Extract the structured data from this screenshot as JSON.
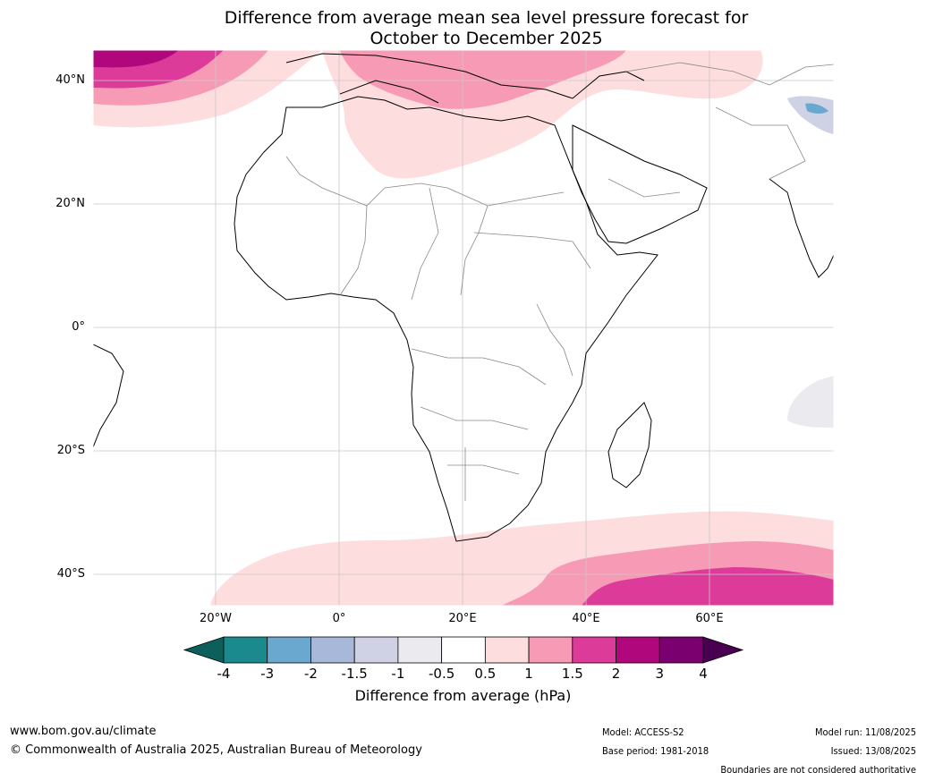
{
  "title": {
    "line1": "Difference from average mean sea level pressure forecast for",
    "line2": "October to December 2025"
  },
  "map": {
    "region": "Africa",
    "lat_labels": [
      "40°N",
      "20°N",
      "0°",
      "20°S",
      "40°S"
    ],
    "lon_labels": [
      "20°W",
      "0°",
      "20°E",
      "40°E",
      "60°E"
    ],
    "lat_values": [
      40,
      20,
      0,
      -20,
      -40
    ],
    "lon_values": [
      -20,
      0,
      20,
      40,
      60
    ],
    "extent": {
      "lon_min": -40,
      "lon_max": 80,
      "lat_min": -45,
      "lat_max": 45
    }
  },
  "colorbar": {
    "ticks": [
      "-4",
      "-3",
      "-2",
      "-1.5",
      "-1",
      "-0.5",
      "0.5",
      "1",
      "1.5",
      "2",
      "3",
      "4"
    ],
    "bin_colors": [
      "#1a8a8e",
      "#6aa8d0",
      "#a7b8d9",
      "#cfd2e5",
      "#ebeaee",
      "#ffffff",
      "#fddddd",
      "#f79ab5",
      "#dd3b9a",
      "#b0087c",
      "#7a0070"
    ],
    "low_extend_color": "#0d5f5c",
    "high_extend_color": "#4a0050",
    "label": "Difference from average (hPa)"
  },
  "footer": {
    "website": "www.bom.gov.au/climate",
    "copyright": "© Commonwealth of Australia 2025, Australian Bureau of Meteorology",
    "model": "Model: ACCESS-S2",
    "base_period": "Base period: 1981-2018",
    "model_run": "Model run: 11/08/2025",
    "issued": "Issued: 13/08/2025",
    "disclaimer": "Boundaries are not considered authoritative"
  }
}
